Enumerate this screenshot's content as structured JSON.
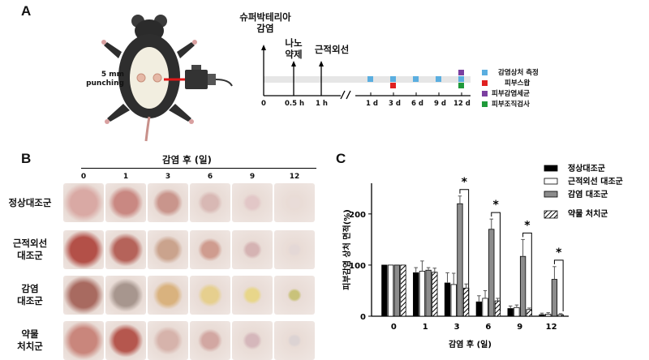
{
  "panel_a": {
    "letter": "A",
    "punch_label": "5 mm\npunching",
    "events": [
      {
        "label": "슈퍼박테리아\n감염",
        "t": "0"
      },
      {
        "label": "나노\n약제",
        "t": "0.5 h"
      },
      {
        "label": "근적외선",
        "t": "1 h"
      }
    ],
    "day_ticks": [
      "1 d",
      "3 d",
      "6 d",
      "9 d",
      "12 d"
    ],
    "legend": [
      {
        "label": "감염상처 측정",
        "color": "#5aaee0"
      },
      {
        "label": "피부스왑",
        "color": "#e02020"
      },
      {
        "label": "피부감염세균",
        "color": "#7b3fa0"
      },
      {
        "label": "피부조직검사",
        "color": "#1f9a3a"
      }
    ]
  },
  "panel_b": {
    "letter": "B",
    "title": "감염 후 (일)",
    "days": [
      "0",
      "1",
      "3",
      "6",
      "9",
      "12"
    ],
    "rows": [
      {
        "label": "정상대조군",
        "tones": [
          "#d9a9a4",
          "#c98882",
          "#c9958c",
          "#d8b8b4",
          "#e2c7c7",
          "#e9dcd8"
        ]
      },
      {
        "label": "근적외선\n대조군",
        "tones": [
          "#b35048",
          "#b5635a",
          "#caa38d",
          "#cf9c8f",
          "#d5b3b3",
          "#e4d8d6"
        ]
      },
      {
        "label": "감염\n대조군",
        "tones": [
          "#a86a60",
          "#a7968e",
          "#d9b27e",
          "#e6cf8e",
          "#e8d68a",
          "#c9c27a"
        ]
      },
      {
        "label": "약물\n처치군",
        "tones": [
          "#c9867c",
          "#b5574e",
          "#d6b3ab",
          "#d2a7a2",
          "#d5b7bb",
          "#dcd3d3"
        ]
      }
    ]
  },
  "panel_c": {
    "letter": "C",
    "star": "*"
  },
  "chart_data": {
    "type": "bar",
    "categories": [
      "0",
      "1",
      "3",
      "6",
      "9",
      "12"
    ],
    "xlabel": "감염 후 (일)",
    "ylabel": "피부감염 상처 면적(%)",
    "ylim": [
      0,
      260
    ],
    "yticks": [
      "0",
      "100",
      "200"
    ],
    "series": [
      {
        "name": "정상대조군",
        "values": [
          100,
          85,
          65,
          28,
          15,
          3
        ],
        "errors": [
          0,
          10,
          20,
          12,
          5,
          3
        ],
        "fill": "#000000"
      },
      {
        "name": "근적외선 대조군",
        "values": [
          100,
          88,
          62,
          35,
          17,
          4
        ],
        "errors": [
          0,
          20,
          22,
          15,
          5,
          3
        ],
        "fill": "#ffffff"
      },
      {
        "name": "감염 대조군",
        "values": [
          100,
          90,
          220,
          170,
          117,
          72
        ],
        "errors": [
          0,
          5,
          15,
          20,
          33,
          25
        ],
        "fill": "#8c8c8c"
      },
      {
        "name": "약물 처치군",
        "values": [
          100,
          86,
          55,
          30,
          13,
          3
        ],
        "errors": [
          0,
          8,
          8,
          5,
          3,
          2
        ],
        "fill": "hatch"
      }
    ],
    "significance": [
      "3",
      "6",
      "9",
      "12"
    ]
  }
}
